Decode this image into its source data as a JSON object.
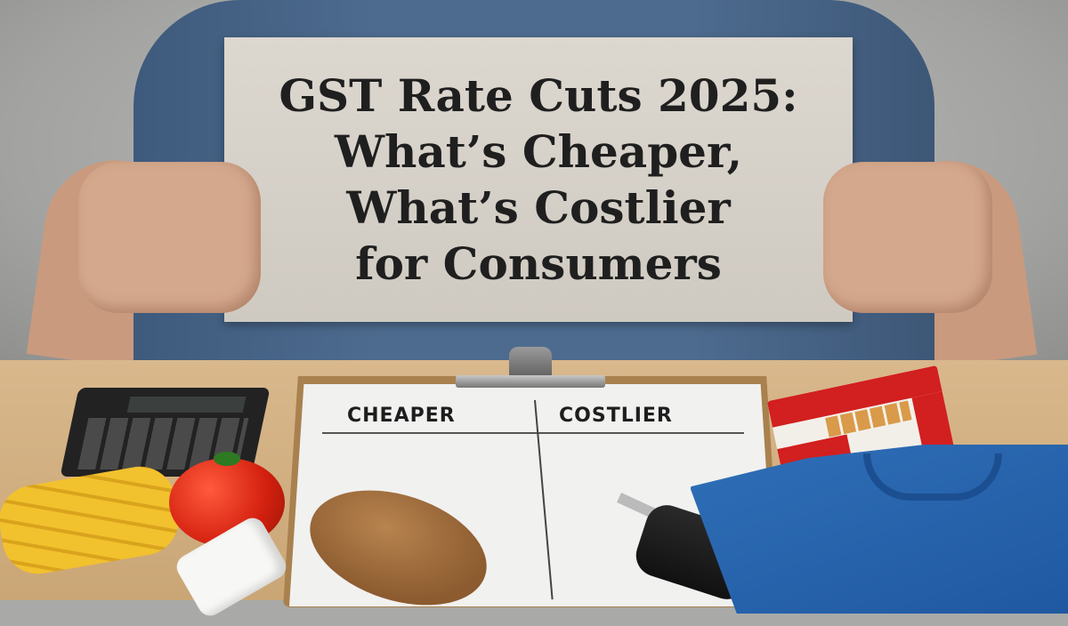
{
  "sign": {
    "lines": [
      "GST Rate Cuts 2025:",
      "What’s Cheaper,",
      "What’s Costlier",
      "for Consumers"
    ]
  },
  "clipboard": {
    "left_header": "CHEAPER",
    "right_header": "COSTLIER"
  },
  "objects": [
    "calculator",
    "pasta",
    "tomato",
    "pill-bottle",
    "bread",
    "car-key",
    "cigarette-pack",
    "t-shirt"
  ],
  "colors": {
    "shirt": "#4d6b8f",
    "sign": "#d6d1c8",
    "table": "#d8b88c",
    "tshirt": "#2f6fb8",
    "cigarette_red": "#d21f1f"
  }
}
